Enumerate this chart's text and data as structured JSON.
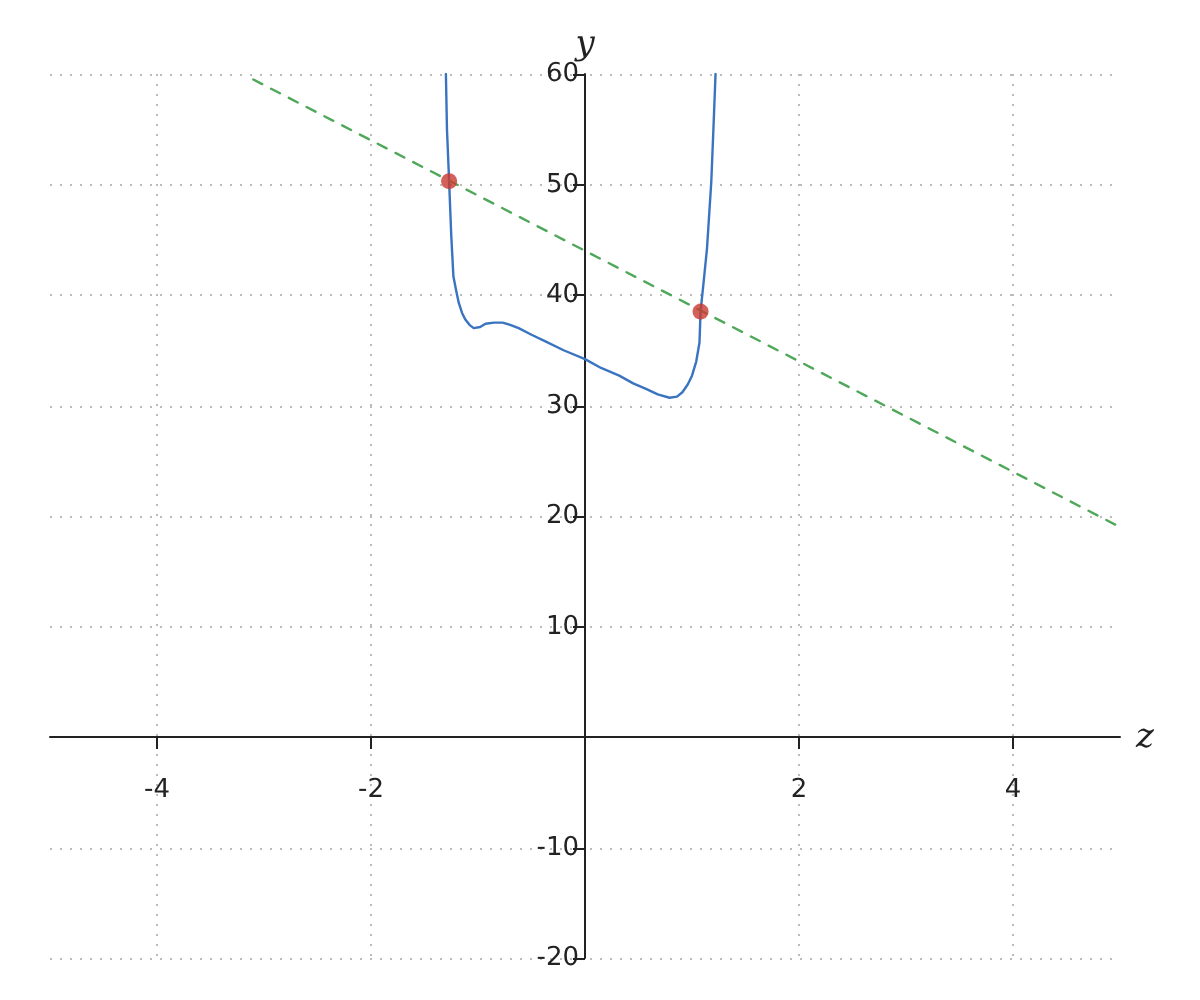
{
  "chart_data": {
    "type": "line",
    "xlabel": "z",
    "ylabel": "y",
    "xlim": [
      -5,
      5
    ],
    "ylim": [
      -20,
      60
    ],
    "xticks": [
      -4,
      -2,
      2,
      4
    ],
    "yticks": [
      -20,
      -10,
      10,
      20,
      30,
      40,
      50,
      60
    ],
    "grid": true,
    "series": [
      {
        "color": "#3a74c0",
        "marker": "none",
        "line_style": "solid",
        "x": [
          -1.3,
          -1.29,
          -1.27,
          -1.25,
          -1.23,
          -1.2,
          -1.18,
          -1.15,
          -1.12,
          -1.08,
          -1.04,
          -0.98,
          -0.93,
          -0.85,
          -0.77,
          -0.7,
          -0.62,
          -0.5,
          -0.37,
          -0.2,
          0,
          0.15,
          0.32,
          0.45,
          0.57,
          0.68,
          0.79,
          0.86,
          0.91,
          0.96,
          1.0,
          1.04,
          1.07,
          1.08,
          1.11,
          1.14,
          1.16,
          1.18,
          1.2,
          1.22
        ],
        "values": [
          60,
          55,
          50.3,
          45.4,
          41.7,
          40.2,
          39.3,
          38.4,
          37.8,
          37.3,
          37,
          37.1,
          37.4,
          37.5,
          37.5,
          37.3,
          37,
          36.4,
          35.8,
          35,
          34.2,
          33.4,
          32.7,
          32,
          31.5,
          31,
          30.7,
          30.8,
          31.2,
          31.9,
          32.7,
          34,
          35.7,
          38.5,
          41.3,
          44.2,
          47.2,
          50.2,
          55,
          60
        ]
      },
      {
        "color": "#4fa85a",
        "marker": "none",
        "line_style": "dashed",
        "x": [
          -3.1,
          5
        ],
        "values": [
          59.5,
          19
        ]
      },
      {
        "type": "scatter",
        "color": "#c9392f",
        "marker": "circle",
        "x": [
          -1.27,
          1.08
        ],
        "values": [
          50.3,
          38.5
        ]
      }
    ]
  }
}
